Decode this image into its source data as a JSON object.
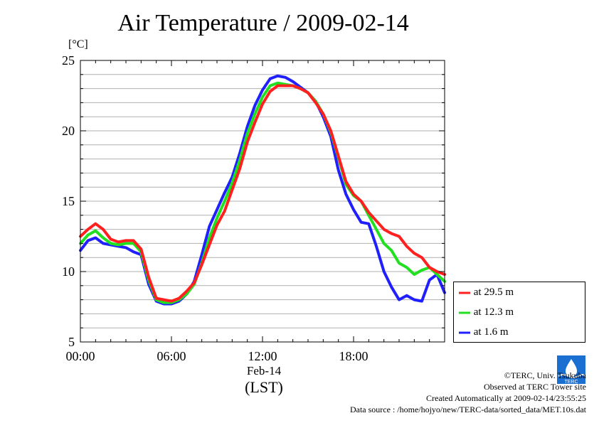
{
  "chart_data": {
    "type": "line",
    "title": "Air Temperature / 2009-02-14",
    "ylabel": "[°C]",
    "xlabel_date": "Feb-14",
    "xlabel_unit": "(LST)",
    "xlim": [
      0,
      24
    ],
    "ylim": [
      5,
      25
    ],
    "x_ticks": [
      0,
      6,
      12,
      18
    ],
    "x_tick_labels": [
      "00:00",
      "06:00",
      "12:00",
      "18:00"
    ],
    "y_ticks": [
      5,
      10,
      15,
      20,
      25
    ],
    "y_tick_labels": [
      "5",
      "10",
      "15",
      "20",
      "25"
    ],
    "grid": "horizontal",
    "legend_position": "right-bottom",
    "x": [
      0,
      0.5,
      1,
      1.5,
      2,
      2.5,
      3,
      3.5,
      4,
      4.5,
      5,
      5.5,
      6,
      6.5,
      7,
      7.5,
      8,
      8.5,
      9,
      9.5,
      10,
      10.5,
      11,
      11.5,
      12,
      12.5,
      13,
      13.5,
      14,
      14.5,
      15,
      15.5,
      16,
      16.5,
      17,
      17.5,
      18,
      18.5,
      19,
      19.5,
      20,
      20.5,
      21,
      21.5,
      22,
      22.5,
      23,
      23.5,
      24
    ],
    "series": [
      {
        "name": "at 29.5 m",
        "color": "#ff2020",
        "values": [
          12.5,
          13.0,
          13.4,
          13.0,
          12.3,
          12.1,
          12.2,
          12.2,
          11.6,
          9.6,
          8.1,
          8.0,
          7.9,
          8.1,
          8.6,
          9.2,
          10.5,
          11.9,
          13.3,
          14.3,
          15.8,
          17.3,
          19.2,
          20.6,
          21.9,
          22.8,
          23.2,
          23.2,
          23.2,
          23.0,
          22.7,
          22.0,
          21.2,
          20.0,
          18.2,
          16.4,
          15.5,
          15.0,
          14.2,
          13.6,
          13.0,
          12.7,
          12.5,
          11.8,
          11.3,
          11.0,
          10.3,
          10.0,
          9.8
        ]
      },
      {
        "name": "at 12.3 m",
        "color": "#20e020",
        "values": [
          12.0,
          12.6,
          12.9,
          12.4,
          12.0,
          11.9,
          12.0,
          12.0,
          11.4,
          9.4,
          8.0,
          7.8,
          7.8,
          8.0,
          8.4,
          9.1,
          10.6,
          12.4,
          13.8,
          15.0,
          16.3,
          17.9,
          19.8,
          21.2,
          22.4,
          23.2,
          23.4,
          23.3,
          23.2,
          23.0,
          22.7,
          22.1,
          21.2,
          19.9,
          18.1,
          16.2,
          15.4,
          15.0,
          14.0,
          13.0,
          12.0,
          11.5,
          10.6,
          10.3,
          9.8,
          10.1,
          10.3,
          9.8,
          9.3
        ]
      },
      {
        "name": "at 1.6 m",
        "color": "#2020ff",
        "values": [
          11.5,
          12.2,
          12.4,
          12.0,
          11.9,
          11.8,
          11.7,
          11.4,
          11.2,
          9.1,
          7.9,
          7.7,
          7.7,
          7.9,
          8.4,
          9.3,
          11.2,
          13.2,
          14.4,
          15.6,
          16.7,
          18.4,
          20.3,
          21.8,
          22.9,
          23.7,
          23.9,
          23.8,
          23.5,
          23.1,
          22.7,
          22.1,
          21.0,
          19.6,
          17.2,
          15.5,
          14.4,
          13.5,
          13.4,
          11.8,
          10.0,
          8.9,
          8.0,
          8.3,
          8.0,
          7.9,
          9.4,
          9.8,
          8.5
        ]
      }
    ]
  },
  "credits": {
    "copyright": "©TERC, Univ. Tsukuba",
    "observed": "Observed at TERC Tower site",
    "created": "Created Automatically at 2009-02-14/23:55:25",
    "source": "Data source : /home/hojyo/new/TERC-data/sorted_data/MET.10s.dat",
    "logo_text": "TERC"
  }
}
